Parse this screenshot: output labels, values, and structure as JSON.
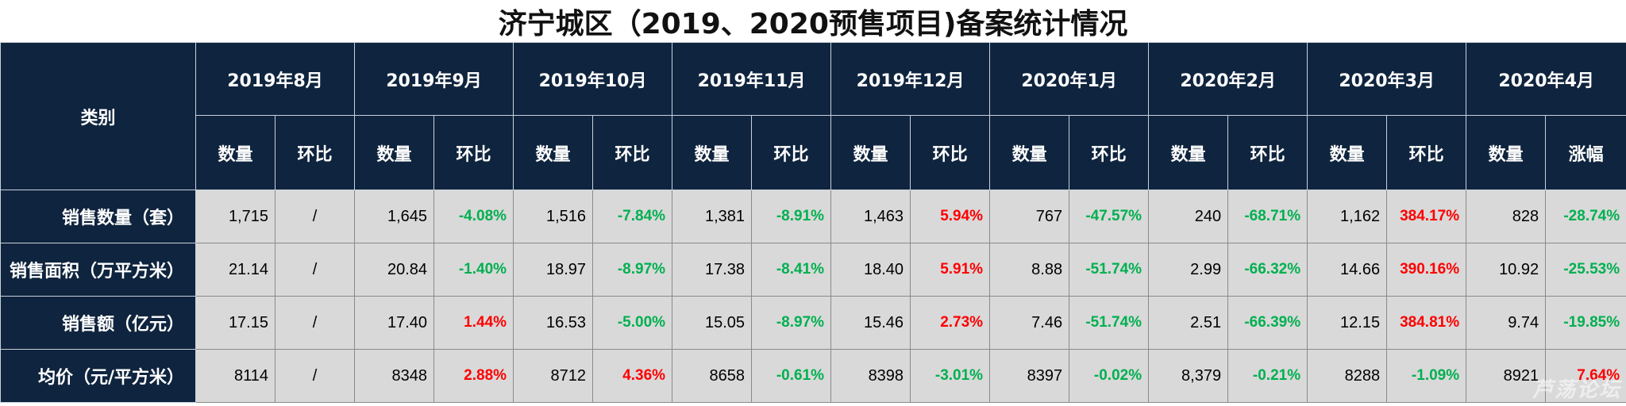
{
  "title": "济宁城区（2019、2020预售项目)备案统计情况",
  "category_header": "类别",
  "months": [
    {
      "label": "2019年8月",
      "sub": [
        "数量",
        "环比"
      ]
    },
    {
      "label": "2019年9月",
      "sub": [
        "数量",
        "环比"
      ]
    },
    {
      "label": "2019年10月",
      "sub": [
        "数量",
        "环比"
      ]
    },
    {
      "label": "2019年11月",
      "sub": [
        "数量",
        "环比"
      ]
    },
    {
      "label": "2019年12月",
      "sub": [
        "数量",
        "环比"
      ]
    },
    {
      "label": "2020年1月",
      "sub": [
        "数量",
        "环比"
      ]
    },
    {
      "label": "2020年2月",
      "sub": [
        "数量",
        "环比"
      ]
    },
    {
      "label": "2020年3月",
      "sub": [
        "数量",
        "环比"
      ]
    },
    {
      "label": "2020年4月",
      "sub": [
        "数量",
        "涨幅"
      ]
    }
  ],
  "rows": [
    {
      "label": "销售数量（套）",
      "cells": [
        {
          "q": "1,715",
          "c": "/",
          "s": "none"
        },
        {
          "q": "1,645",
          "c": "-4.08%",
          "s": "neg"
        },
        {
          "q": "1,516",
          "c": "-7.84%",
          "s": "neg"
        },
        {
          "q": "1,381",
          "c": "-8.91%",
          "s": "neg"
        },
        {
          "q": "1,463",
          "c": "5.94%",
          "s": "pos"
        },
        {
          "q": "767",
          "c": "-47.57%",
          "s": "neg"
        },
        {
          "q": "240",
          "c": "-68.71%",
          "s": "neg"
        },
        {
          "q": "1,162",
          "c": "384.17%",
          "s": "pos"
        },
        {
          "q": "828",
          "c": "-28.74%",
          "s": "neg"
        }
      ]
    },
    {
      "label": "销售面积（万平方米）",
      "cells": [
        {
          "q": "21.14",
          "c": "/",
          "s": "none"
        },
        {
          "q": "20.84",
          "c": "-1.40%",
          "s": "neg"
        },
        {
          "q": "18.97",
          "c": "-8.97%",
          "s": "neg"
        },
        {
          "q": "17.38",
          "c": "-8.41%",
          "s": "neg"
        },
        {
          "q": "18.40",
          "c": "5.91%",
          "s": "pos"
        },
        {
          "q": "8.88",
          "c": "-51.74%",
          "s": "neg"
        },
        {
          "q": "2.99",
          "c": "-66.32%",
          "s": "neg"
        },
        {
          "q": "14.66",
          "c": "390.16%",
          "s": "pos"
        },
        {
          "q": "10.92",
          "c": "-25.53%",
          "s": "neg"
        }
      ]
    },
    {
      "label": "销售额（亿元）",
      "cells": [
        {
          "q": "17.15",
          "c": "/",
          "s": "none"
        },
        {
          "q": "17.40",
          "c": "1.44%",
          "s": "pos"
        },
        {
          "q": "16.53",
          "c": "-5.00%",
          "s": "neg"
        },
        {
          "q": "15.05",
          "c": "-8.97%",
          "s": "neg"
        },
        {
          "q": "15.46",
          "c": "2.73%",
          "s": "pos"
        },
        {
          "q": "7.46",
          "c": "-51.74%",
          "s": "neg"
        },
        {
          "q": "2.51",
          "c": "-66.39%",
          "s": "neg"
        },
        {
          "q": "12.15",
          "c": "384.81%",
          "s": "pos"
        },
        {
          "q": "9.74",
          "c": "-19.85%",
          "s": "neg"
        }
      ]
    },
    {
      "label": "均价（元/平方米）",
      "cells": [
        {
          "q": "8114",
          "c": "/",
          "s": "none"
        },
        {
          "q": "8348",
          "c": "2.88%",
          "s": "pos"
        },
        {
          "q": "8712",
          "c": "4.36%",
          "s": "pos"
        },
        {
          "q": "8658",
          "c": "-0.61%",
          "s": "neg"
        },
        {
          "q": "8398",
          "c": "-3.01%",
          "s": "neg"
        },
        {
          "q": "8397",
          "c": "-0.02%",
          "s": "neg"
        },
        {
          "q": "8,379",
          "c": "-0.21%",
          "s": "neg"
        },
        {
          "q": "8288",
          "c": "-1.09%",
          "s": "neg"
        },
        {
          "q": "8921",
          "c": "7.64%",
          "s": "pos"
        }
      ]
    }
  ],
  "colors": {
    "header_bg": "#0f243e",
    "cell_bg": "#d9d9d9",
    "positive": "#ff0000",
    "negative": "#00b050"
  },
  "watermark": "芦荡论坛"
}
